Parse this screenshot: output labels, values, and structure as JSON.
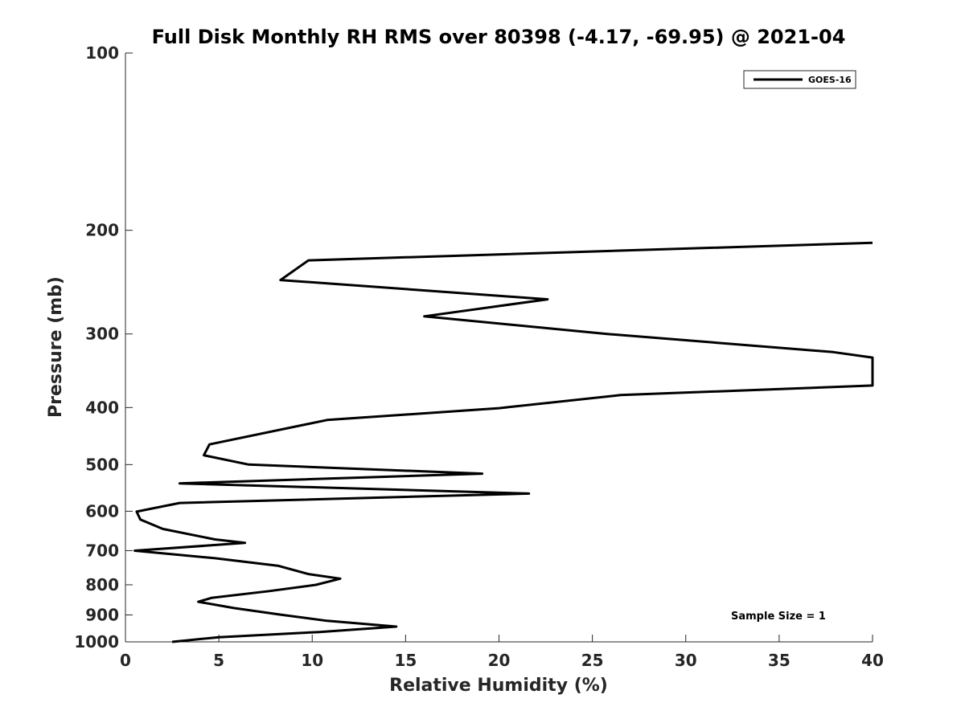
{
  "chart_data": {
    "type": "line",
    "title": "Full Disk Monthly RH RMS over 80398 (-4.17, -69.95) @ 2021-04",
    "xlabel": "Relative Humidity (%)",
    "ylabel": "Pressure (mb)",
    "xlim": [
      0,
      40
    ],
    "ylim": [
      100,
      1000
    ],
    "yscale": "log",
    "yreversed": true,
    "xticks": [
      0,
      5,
      10,
      15,
      20,
      25,
      30,
      35,
      40
    ],
    "xtick_labels": [
      "0",
      "5",
      "10",
      "15",
      "20",
      "25",
      "30",
      "35",
      "40"
    ],
    "yticks": [
      100,
      200,
      300,
      400,
      500,
      600,
      700,
      800,
      900,
      1000
    ],
    "ytick_labels": [
      "100",
      "200",
      "300",
      "400",
      "500",
      "600",
      "700",
      "800",
      "900",
      "1000"
    ],
    "grid": false,
    "legend_position": "top-right",
    "annotation": "Sample Size = 1",
    "series": [
      {
        "name": "GOES-16",
        "color": "#000000",
        "points": [
          {
            "x": 40.0,
            "y": 210
          },
          {
            "x": 9.8,
            "y": 225
          },
          {
            "x": 8.3,
            "y": 243
          },
          {
            "x": 22.6,
            "y": 262
          },
          {
            "x": 16.0,
            "y": 280
          },
          {
            "x": 25.8,
            "y": 300
          },
          {
            "x": 37.9,
            "y": 322
          },
          {
            "x": 40.0,
            "y": 329
          },
          {
            "x": 40.0,
            "y": 367
          },
          {
            "x": 26.5,
            "y": 381
          },
          {
            "x": 20.0,
            "y": 401
          },
          {
            "x": 10.8,
            "y": 420
          },
          {
            "x": 4.5,
            "y": 462
          },
          {
            "x": 4.2,
            "y": 482
          },
          {
            "x": 6.6,
            "y": 500
          },
          {
            "x": 19.1,
            "y": 518
          },
          {
            "x": 2.9,
            "y": 538
          },
          {
            "x": 21.6,
            "y": 560
          },
          {
            "x": 2.9,
            "y": 581
          },
          {
            "x": 0.6,
            "y": 601
          },
          {
            "x": 0.8,
            "y": 620
          },
          {
            "x": 2.0,
            "y": 643
          },
          {
            "x": 4.8,
            "y": 670
          },
          {
            "x": 6.4,
            "y": 679
          },
          {
            "x": 0.5,
            "y": 700
          },
          {
            "x": 4.8,
            "y": 721
          },
          {
            "x": 8.2,
            "y": 743
          },
          {
            "x": 9.8,
            "y": 767
          },
          {
            "x": 11.5,
            "y": 781
          },
          {
            "x": 10.2,
            "y": 800
          },
          {
            "x": 7.7,
            "y": 820
          },
          {
            "x": 4.6,
            "y": 842
          },
          {
            "x": 3.9,
            "y": 855
          },
          {
            "x": 5.8,
            "y": 876
          },
          {
            "x": 8.3,
            "y": 899
          },
          {
            "x": 10.8,
            "y": 921
          },
          {
            "x": 14.5,
            "y": 942
          },
          {
            "x": 10.4,
            "y": 962
          },
          {
            "x": 5.0,
            "y": 982
          },
          {
            "x": 2.5,
            "y": 1000
          }
        ]
      }
    ]
  }
}
